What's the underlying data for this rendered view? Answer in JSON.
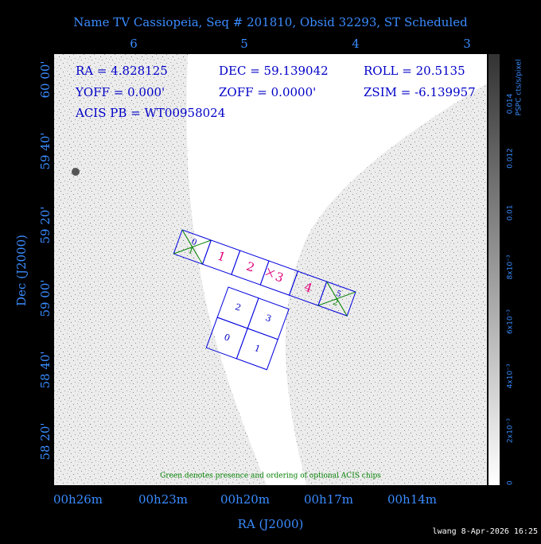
{
  "title": "Name TV Cassiopeia, Seq # 201810, Obsid 32293, ST Scheduled",
  "info": [
    "RA = 4.828125",
    "DEC = 59.139042",
    "ROLL = 20.5135",
    "YOFF =    0.000'",
    "ZOFF =  0.0000'",
    "ZSIM = -6.139957",
    "ACIS PB = WT00958024"
  ],
  "top_axis": [
    "6",
    "5",
    "4",
    "3"
  ],
  "left_axis": [
    "60 00'",
    "59 40'",
    "59 20'",
    "59 00'",
    "58 40'",
    "58 20'"
  ],
  "bottom_axis": [
    "00h26m",
    "00h23m",
    "00h20m",
    "00h17m",
    "00h14m"
  ],
  "x_label": "RA (J2000)",
  "y_label": "Dec (J2000)",
  "colorbar": {
    "label": "PSPC cts/s/pixel",
    "ticks": [
      "0",
      "2x10⁻³",
      "4x10⁻³",
      "6x10⁻³",
      "8x10⁻³",
      "0.01",
      "0.012",
      "0.014"
    ]
  },
  "acis_s_chips": [
    {
      "label": "0",
      "optional": "1"
    },
    {
      "label": "1"
    },
    {
      "label": "2"
    },
    {
      "label": "3"
    },
    {
      "label": "4"
    },
    {
      "label": "5",
      "optional": "2"
    }
  ],
  "acis_i_chips": [
    "2",
    "3",
    "0",
    "1"
  ],
  "footnote": "Green denotes presence and ordering of optional ACIS chips",
  "stamp": "lwang  8-Apr-2026 16:25"
}
